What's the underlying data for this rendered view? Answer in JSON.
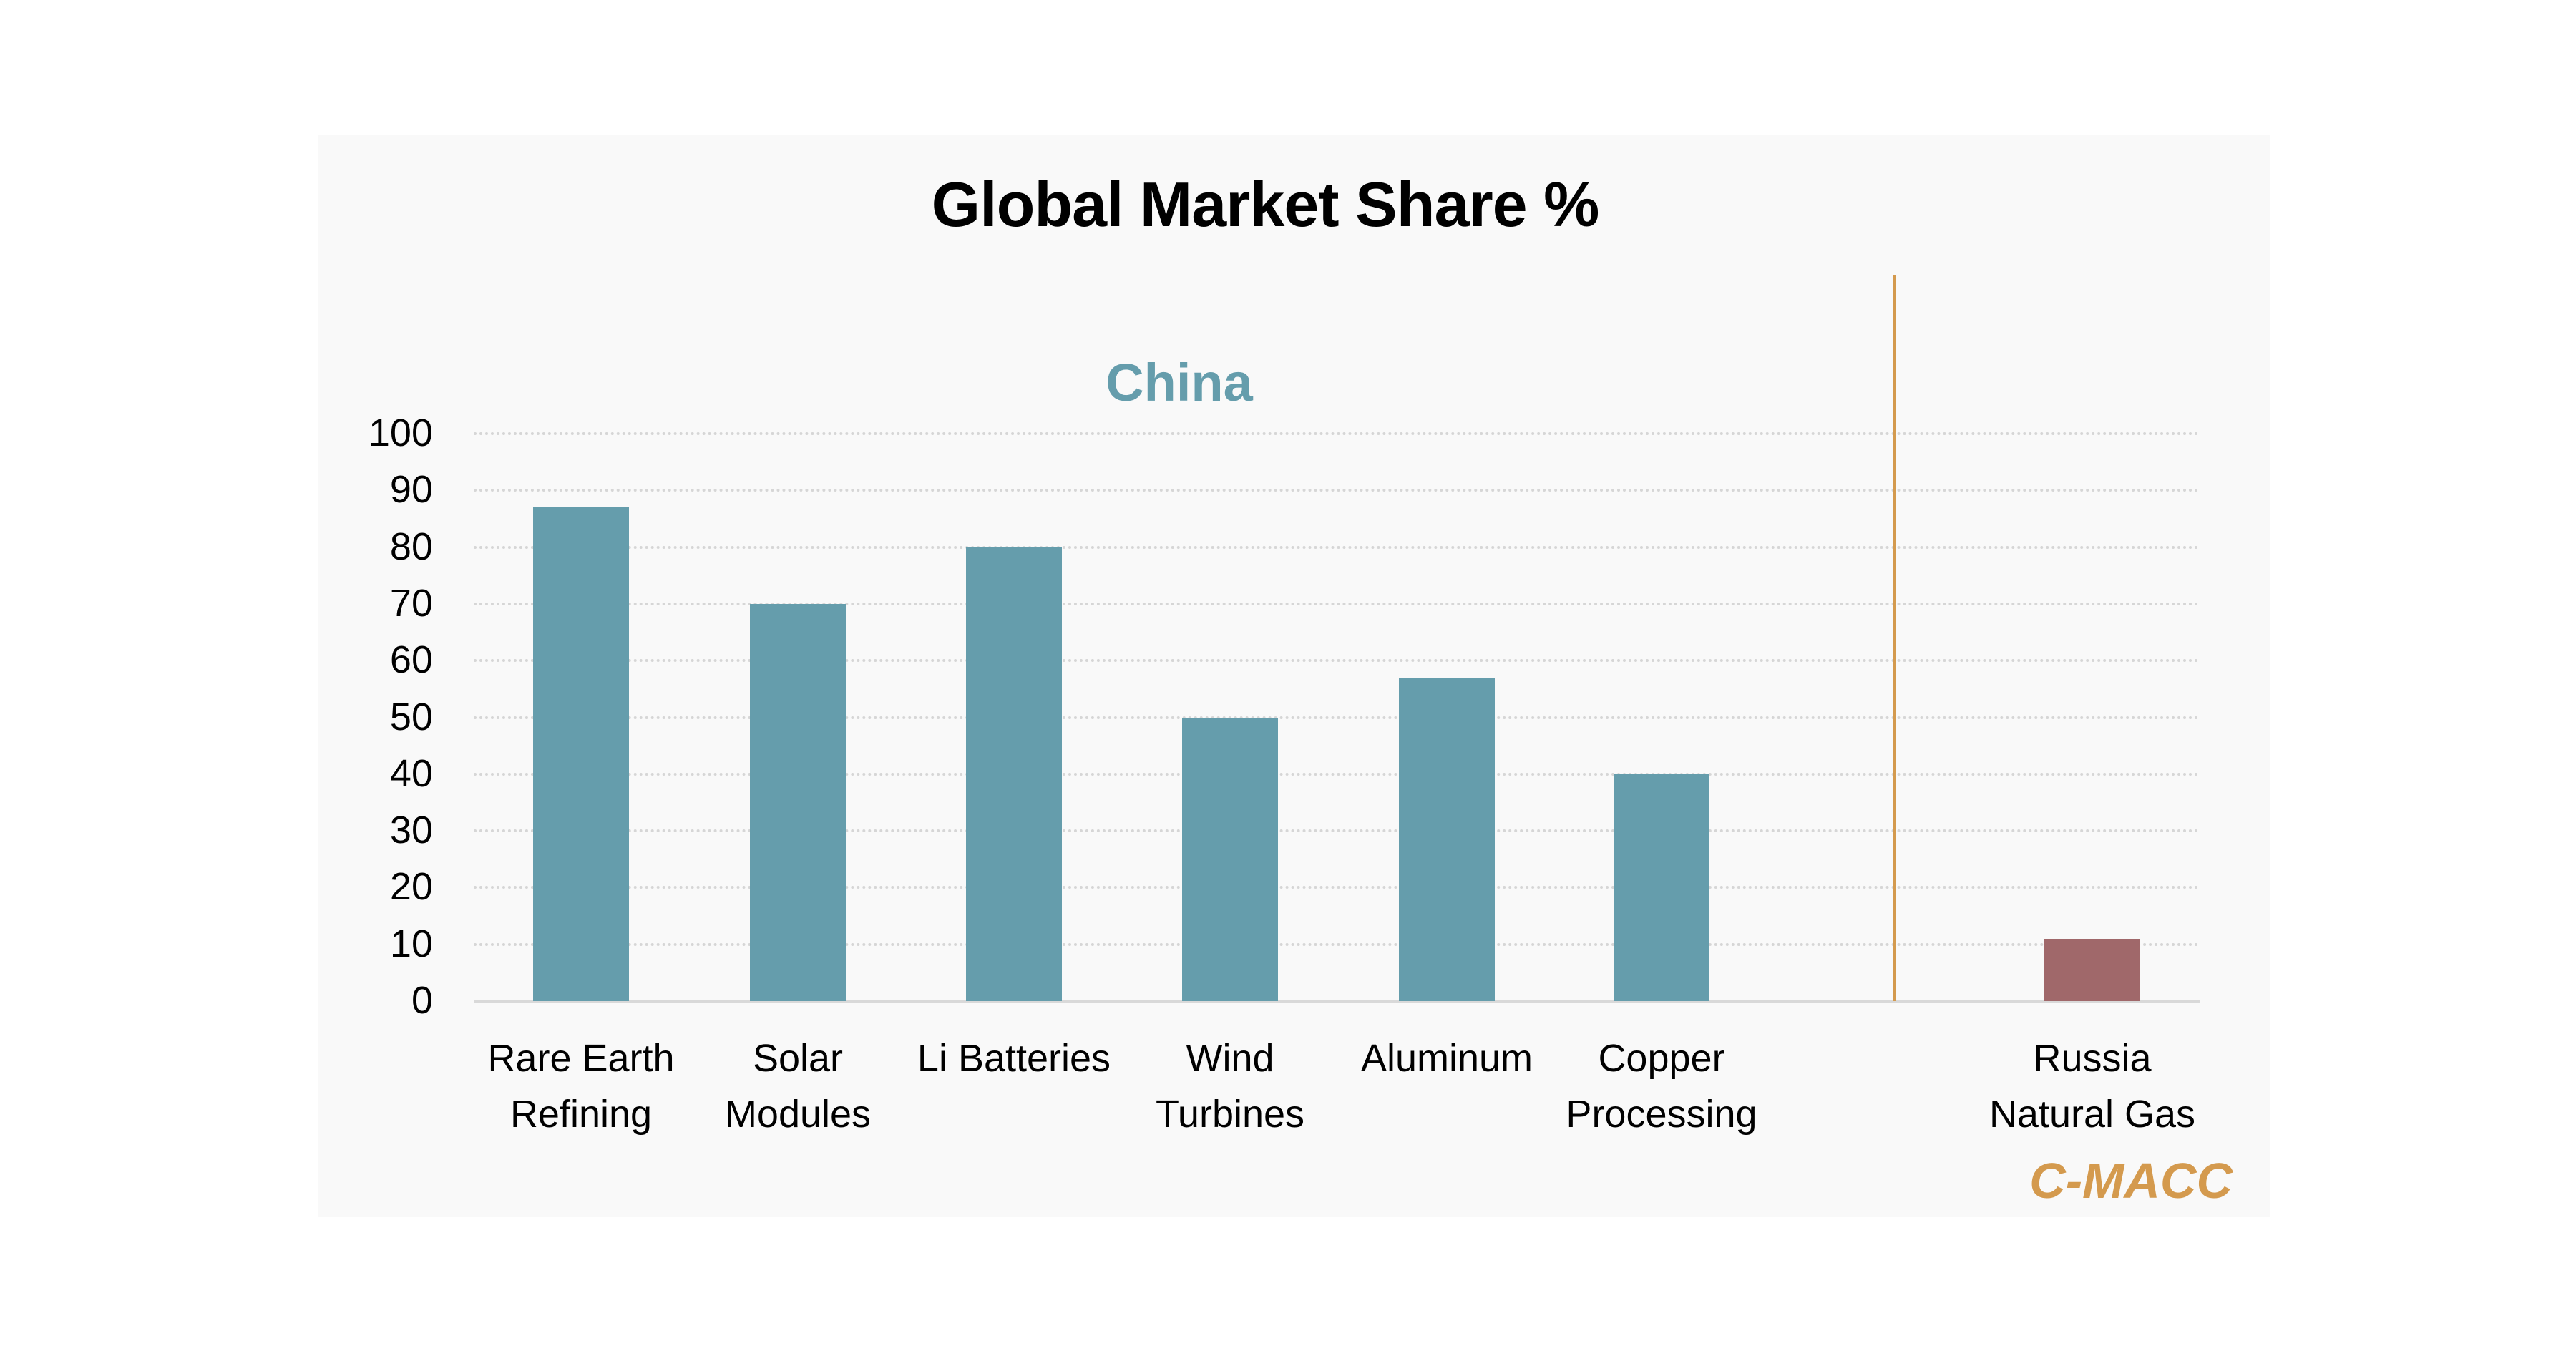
{
  "chart_data": {
    "type": "bar",
    "title": "Global Market Share %",
    "xlabel": "",
    "ylabel": "",
    "ylim": [
      0,
      100
    ],
    "yticks": [
      0,
      10,
      20,
      30,
      40,
      50,
      60,
      70,
      80,
      90,
      100
    ],
    "grid": true,
    "categories": [
      "Rare Earth Refining",
      "Solar Modules",
      "Li Batteries",
      "Wind Turbines",
      "Aluminum",
      "Copper Processing",
      "Russia Natural Gas"
    ],
    "series": [
      {
        "name": "China",
        "values": [
          87,
          70,
          80,
          50,
          57,
          40,
          null
        ],
        "color": "#659dac"
      },
      {
        "name": "Russia",
        "values": [
          null,
          null,
          null,
          null,
          null,
          null,
          11
        ],
        "color": "#a0686a"
      }
    ],
    "annotations": [
      {
        "text": "China",
        "color": "#659dac"
      },
      {
        "text": "C-MACC",
        "color": "#d49a4e"
      }
    ],
    "divider": {
      "between": [
        "Copper Processing",
        "Russia Natural Gas"
      ],
      "color": "#d49a4e"
    }
  },
  "title": "Global Market Share %",
  "yaxis": {
    "ticks": [
      "100",
      "90",
      "80",
      "70",
      "60",
      "50",
      "40",
      "30",
      "20",
      "10",
      "0"
    ]
  },
  "bars": [
    {
      "label1": "Rare Earth",
      "label2": "Refining",
      "value": 87,
      "color": "#659dac"
    },
    {
      "label1": "Solar",
      "label2": "Modules",
      "value": 70,
      "color": "#659dac"
    },
    {
      "label1": "Li Batteries",
      "label2": "",
      "value": 80,
      "color": "#659dac"
    },
    {
      "label1": "Wind",
      "label2": "Turbines",
      "value": 50,
      "color": "#659dac"
    },
    {
      "label1": "Aluminum",
      "label2": "",
      "value": 57,
      "color": "#659dac"
    },
    {
      "label1": "Copper",
      "label2": "Processing",
      "value": 40,
      "color": "#659dac"
    },
    {
      "label1": "Russia",
      "label2": "Natural Gas",
      "value": 11,
      "color": "#a0686a"
    }
  ],
  "annotation_china": "China",
  "brand": "C-MACC"
}
